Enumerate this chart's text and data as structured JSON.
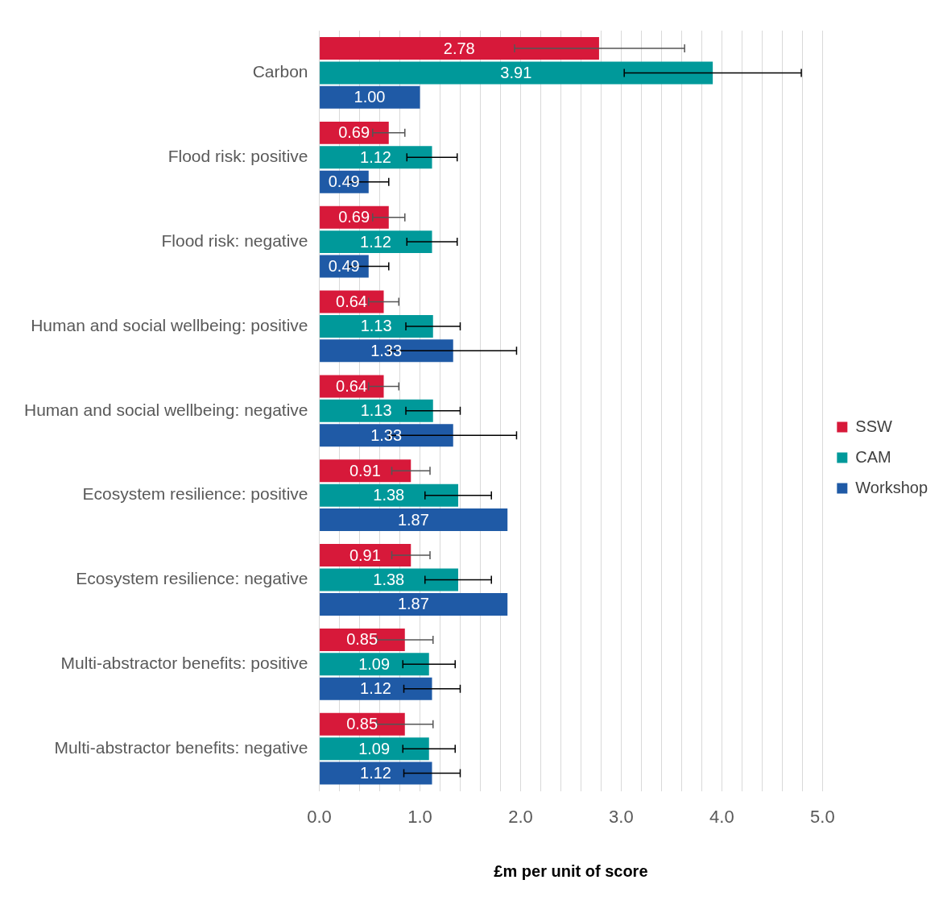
{
  "chart_data": {
    "type": "bar",
    "orientation": "horizontal",
    "xlabel": "£m per unit of score",
    "categories": [
      "Carbon",
      "Flood risk: positive",
      "Flood risk: negative",
      "Human and social wellbeing: positive",
      "Human and social wellbeing: negative",
      "Ecosystem resilience: positive",
      "Ecosystem resilience: negative",
      "Multi-abstractor benefits: positive",
      "Multi-abstractor benefits: negative"
    ],
    "series": [
      {
        "name": "SSW",
        "color": "#d7193a",
        "values": [
          2.78,
          0.69,
          0.69,
          0.64,
          0.64,
          0.91,
          0.91,
          0.85,
          0.85
        ],
        "value_labels": [
          "2.78",
          "0.69",
          "0.69",
          "0.64",
          "0.64",
          "0.91",
          "0.91",
          "0.85",
          "0.85"
        ],
        "errors": [
          [
            1.94,
            3.63
          ],
          0.16,
          0.16,
          0.15,
          0.15,
          0.19,
          0.19,
          0.28,
          0.28
        ]
      },
      {
        "name": "CAM",
        "color": "#00999a",
        "values": [
          3.91,
          1.12,
          1.12,
          1.13,
          1.13,
          1.38,
          1.38,
          1.09,
          1.09
        ],
        "value_labels": [
          "3.91",
          "1.12",
          "1.12",
          "1.13",
          "1.13",
          "1.38",
          "1.38",
          "1.09",
          "1.09"
        ],
        "errors": [
          [
            3.03,
            4.79
          ],
          0.25,
          0.25,
          0.27,
          0.27,
          0.33,
          0.33,
          0.26,
          0.26
        ]
      },
      {
        "name": "Workshop",
        "color": "#1f5aa6",
        "values": [
          1.0,
          0.49,
          0.49,
          1.33,
          1.33,
          1.87,
          1.87,
          1.12,
          1.12
        ],
        "value_labels": [
          "1.00",
          "0.49",
          "0.49",
          "1.33",
          "1.33",
          "1.87",
          "1.87",
          "1.12",
          "1.12"
        ],
        "errors": [
          null,
          0.2,
          0.2,
          0.63,
          0.63,
          null,
          null,
          0.28,
          0.28
        ]
      }
    ],
    "xlim": [
      0,
      5
    ],
    "xticks": [
      {
        "value": 0,
        "label": "0.0"
      },
      {
        "value": 0.2,
        "label": null
      },
      {
        "value": 0.4,
        "label": null
      },
      {
        "value": 0.6,
        "label": null
      },
      {
        "value": 0.8,
        "label": null
      },
      {
        "value": 1,
        "label": "1.0"
      },
      {
        "value": 1.2,
        "label": null
      },
      {
        "value": 1.4,
        "label": null
      },
      {
        "value": 1.6,
        "label": null
      },
      {
        "value": 1.8,
        "label": null
      },
      {
        "value": 2,
        "label": "2.0"
      },
      {
        "value": 2.2,
        "label": null
      },
      {
        "value": 2.4,
        "label": null
      },
      {
        "value": 2.6,
        "label": null
      },
      {
        "value": 2.8,
        "label": null
      },
      {
        "value": 3,
        "label": "3.0"
      },
      {
        "value": 3.2,
        "label": null
      },
      {
        "value": 3.4,
        "label": null
      },
      {
        "value": 3.6,
        "label": null
      },
      {
        "value": 3.8,
        "label": null
      },
      {
        "value": 4,
        "label": "4.0"
      },
      {
        "value": 4.2,
        "label": null
      },
      {
        "value": 4.4,
        "label": null
      },
      {
        "value": 4.6,
        "label": null
      },
      {
        "value": 4.8,
        "label": null
      },
      {
        "value": 5,
        "label": "5.0"
      }
    ],
    "grid": "x",
    "legend": "right"
  }
}
